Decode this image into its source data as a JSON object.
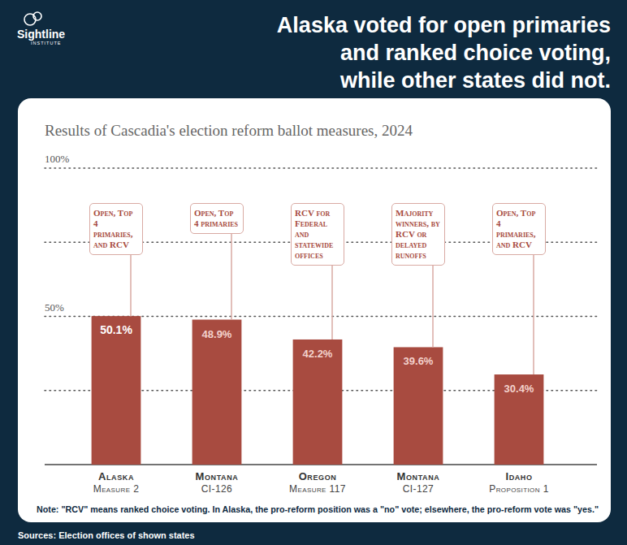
{
  "header": {
    "logo": "Sightline",
    "logo_sub": "INSTITUTE"
  },
  "chart_data": {
    "type": "bar",
    "title": "Alaska voted for open primaries\nand ranked choice voting,\nwhile other states did not.",
    "subtitle": "Results of Cascadia's election reform ballot measures, 2024",
    "categories": [
      "Alaska",
      "Montana",
      "Oregon",
      "Montana",
      "Idaho"
    ],
    "measures": [
      "Measure 2",
      "CI-126",
      "Measure 117",
      "CI-127",
      "Proposition 1"
    ],
    "values": [
      50.1,
      48.9,
      42.2,
      39.6,
      30.4
    ],
    "value_labels": [
      "50.1%",
      "48.9%",
      "42.2%",
      "39.6%",
      "30.4%"
    ],
    "annotations": [
      "Open, Top 4 primaries, and RCV",
      "Open, Top 4 primaries",
      "RCV for Federal and statewide offices",
      "Majority winners, by RCV or delayed runoffs",
      "Open, Top 4 primaries, and RCV"
    ],
    "color": "#a84b40",
    "ylim": [
      0,
      100
    ],
    "yticks": [
      {
        "value": 25,
        "label": null
      },
      {
        "value": 50,
        "label": "50%"
      },
      {
        "value": 75,
        "label": null
      },
      {
        "value": 100,
        "label": "100%"
      }
    ],
    "grid": true,
    "data_labels": true,
    "note": "Note: \"RCV\" means ranked choice voting. In Alaska, the pro-reform position was a \"no\" vote; elsewhere, the pro-reform vote was \"yes.\"",
    "source": "Sources: Election offices of shown states"
  }
}
